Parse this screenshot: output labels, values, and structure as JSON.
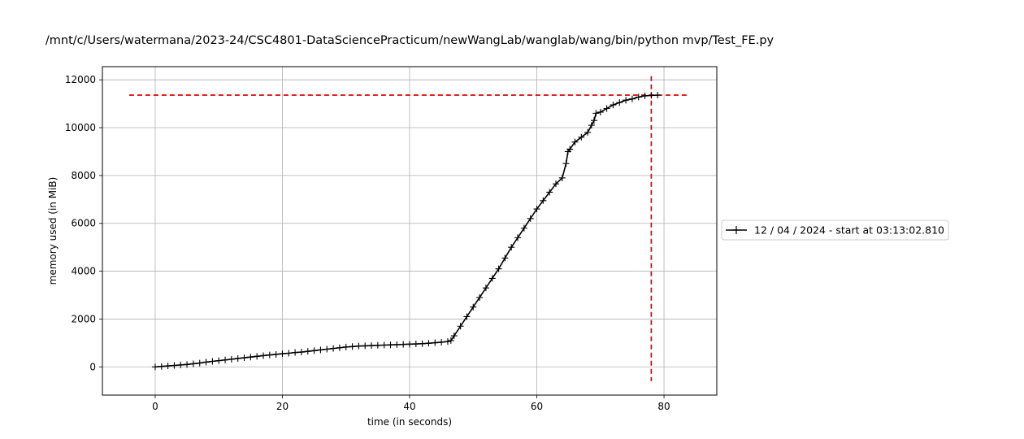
{
  "chart_data": {
    "type": "line",
    "title": "/mnt/c/Users/watermana/2023-24/CSC4801-DataSciencePracticum/newWangLab/wanglab/wang/bin/python mvp/Test_FE.py",
    "xlabel": "time (in seconds)",
    "ylabel": "memory used (in MiB)",
    "xlim": [
      -8.3,
      88.3
    ],
    "ylim": [
      -1180,
      12550
    ],
    "xticks": [
      0,
      20,
      40,
      60,
      80
    ],
    "yticks": [
      0,
      2000,
      4000,
      6000,
      8000,
      10000,
      12000
    ],
    "grid": true,
    "legend_position": "center-right-outside",
    "series": [
      {
        "name": "12 / 04 / 2024 - start at 03:13:02.810",
        "color": "#000000",
        "marker": "+",
        "x": [
          0,
          1,
          2,
          3,
          4,
          5,
          6,
          7,
          8,
          9,
          10,
          11,
          12,
          13,
          14,
          15,
          16,
          17,
          18,
          19,
          20,
          21,
          22,
          23,
          24,
          25,
          26,
          27,
          28,
          29,
          30,
          31,
          32,
          33,
          34,
          35,
          36,
          37,
          38,
          39,
          40,
          41,
          42,
          43,
          44,
          45,
          46,
          46.5,
          47,
          48,
          49,
          50,
          51,
          52,
          53,
          54,
          55,
          56,
          57,
          58,
          59,
          60,
          61,
          62,
          63,
          64,
          64.6,
          64.9,
          65.2,
          66,
          67,
          68,
          68.6,
          69,
          69.3,
          70,
          71,
          72,
          73,
          74,
          75,
          76,
          77,
          78,
          79
        ],
        "y": [
          0,
          20,
          40,
          60,
          80,
          100,
          130,
          160,
          200,
          230,
          260,
          290,
          320,
          350,
          380,
          410,
          440,
          470,
          500,
          520,
          550,
          570,
          600,
          620,
          650,
          680,
          710,
          740,
          770,
          800,
          830,
          850,
          870,
          880,
          890,
          900,
          910,
          920,
          930,
          940,
          950,
          960,
          970,
          990,
          1010,
          1030,
          1060,
          1100,
          1300,
          1700,
          2100,
          2500,
          2900,
          3300,
          3700,
          4100,
          4550,
          5000,
          5400,
          5800,
          6200,
          6600,
          6950,
          7300,
          7650,
          7900,
          8500,
          9000,
          9100,
          9400,
          9600,
          9800,
          10100,
          10300,
          10600,
          10650,
          10800,
          10950,
          11050,
          11150,
          11200,
          11280,
          11330,
          11350,
          11360
        ]
      }
    ],
    "reference_lines": {
      "color": "#dd0000",
      "horizontal_y": 11360,
      "vertical_x": 78
    }
  }
}
